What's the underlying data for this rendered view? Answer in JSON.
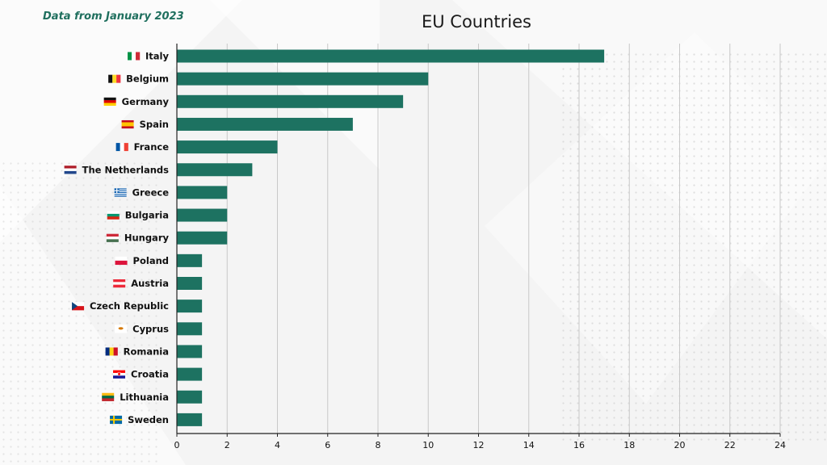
{
  "note": "Data from January 2023",
  "colors": {
    "bar": "#1d7261",
    "note": "#1f6f5e",
    "axis": "#222222",
    "grid": "#c8c8c8"
  },
  "chart_data": {
    "type": "bar",
    "orientation": "horizontal",
    "title": "EU Countries",
    "xlabel": "",
    "ylabel": "",
    "xlim": [
      0,
      24
    ],
    "xticks": [
      0,
      2,
      4,
      6,
      8,
      10,
      12,
      14,
      16,
      18,
      20,
      22,
      24
    ],
    "grid": true,
    "categories": [
      "Italy",
      "Belgium",
      "Germany",
      "Spain",
      "France",
      "The Netherlands",
      "Greece",
      "Bulgaria",
      "Hungary",
      "Poland",
      "Austria",
      "Czech Republic",
      "Cyprus",
      "Romania",
      "Croatia",
      "Lithuania",
      "Sweden"
    ],
    "values": [
      17,
      10,
      9,
      7,
      4,
      3,
      2,
      2,
      2,
      1,
      1,
      1,
      1,
      1,
      1,
      1,
      1
    ],
    "flag_icons": [
      "italy-flag-icon",
      "belgium-flag-icon",
      "germany-flag-icon",
      "spain-flag-icon",
      "france-flag-icon",
      "netherlands-flag-icon",
      "greece-flag-icon",
      "bulgaria-flag-icon",
      "hungary-flag-icon",
      "poland-flag-icon",
      "austria-flag-icon",
      "czech-flag-icon",
      "cyprus-flag-icon",
      "romania-flag-icon",
      "croatia-flag-icon",
      "lithuania-flag-icon",
      "sweden-flag-icon"
    ]
  }
}
